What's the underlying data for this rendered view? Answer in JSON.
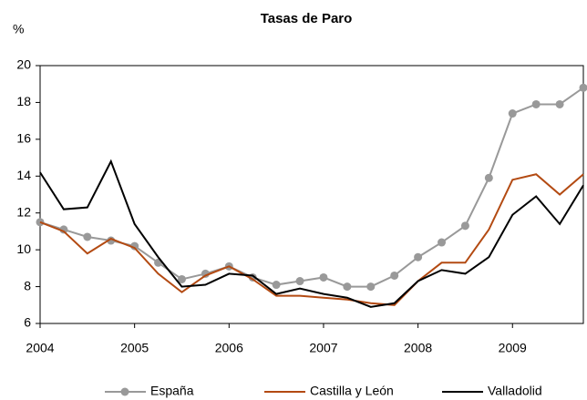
{
  "chart_data": {
    "type": "line",
    "title": "Tasas de Paro",
    "y_label": "%",
    "categories": [
      "2004",
      null,
      null,
      null,
      "2005",
      null,
      null,
      null,
      "2006",
      null,
      null,
      null,
      "2007",
      null,
      null,
      null,
      "2008",
      null,
      null,
      null,
      "2009",
      null,
      null,
      null
    ],
    "series": [
      {
        "name": "España",
        "color": "#999999",
        "marker": "circle",
        "values": [
          11.5,
          11.1,
          10.7,
          10.5,
          10.2,
          9.3,
          8.4,
          8.7,
          9.1,
          8.5,
          8.1,
          8.3,
          8.5,
          8.0,
          8.0,
          8.6,
          9.6,
          10.4,
          11.3,
          13.9,
          17.4,
          17.9,
          17.9,
          18.8
        ]
      },
      {
        "name": "Castilla y León",
        "color": "#b34a12",
        "values": [
          11.5,
          11.0,
          9.8,
          10.6,
          10.1,
          8.7,
          7.7,
          8.6,
          9.1,
          8.4,
          7.5,
          7.5,
          7.4,
          7.3,
          7.1,
          7.0,
          8.3,
          9.3,
          9.3,
          11.1,
          13.8,
          14.1,
          13.0,
          14.1
        ]
      },
      {
        "name": "Valladolid",
        "color": "#000000",
        "values": [
          14.2,
          12.2,
          12.3,
          14.8,
          11.4,
          9.6,
          8.0,
          8.1,
          8.7,
          8.6,
          7.6,
          7.9,
          7.6,
          7.4,
          6.9,
          7.1,
          8.3,
          8.9,
          8.7,
          9.6,
          11.9,
          12.9,
          11.4,
          13.5
        ]
      }
    ],
    "ylim": [
      6,
      20
    ],
    "yticks": [
      6,
      8,
      10,
      12,
      14,
      16,
      18,
      20
    ],
    "grid": false,
    "legend": "bottom"
  }
}
